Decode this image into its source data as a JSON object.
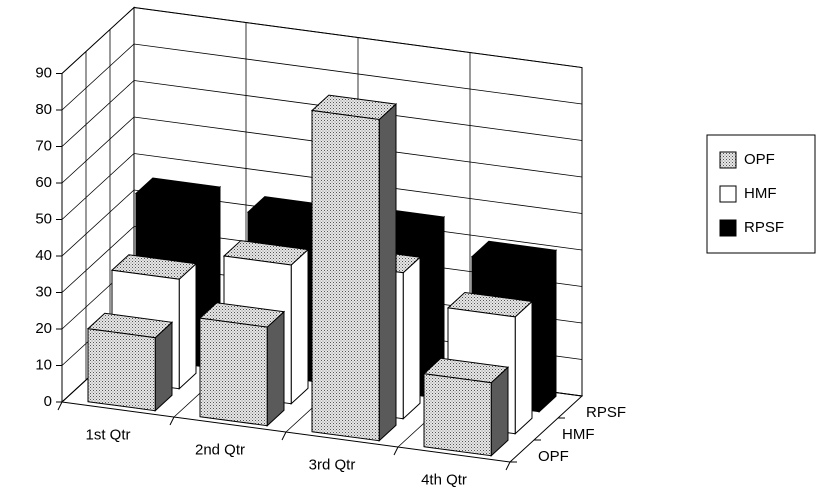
{
  "chart_data": {
    "type": "bar3d",
    "categories": [
      "1st Qtr",
      "2nd Qtr",
      "3rd Qtr",
      "4th Qtr"
    ],
    "series": [
      {
        "name": "OPF",
        "color": "#c8c8c8",
        "values": [
          20,
          27,
          88,
          20
        ]
      },
      {
        "name": "HMF",
        "color": "#ffffff",
        "values": [
          30,
          38,
          40,
          32
        ]
      },
      {
        "name": "RPSF",
        "color": "#000000",
        "values": [
          45,
          44,
          45,
          40
        ]
      }
    ],
    "ylim": [
      0,
      90
    ],
    "yticks": [
      0,
      10,
      20,
      30,
      40,
      50,
      60,
      70,
      80,
      90
    ],
    "grid": true,
    "legend": "right"
  }
}
